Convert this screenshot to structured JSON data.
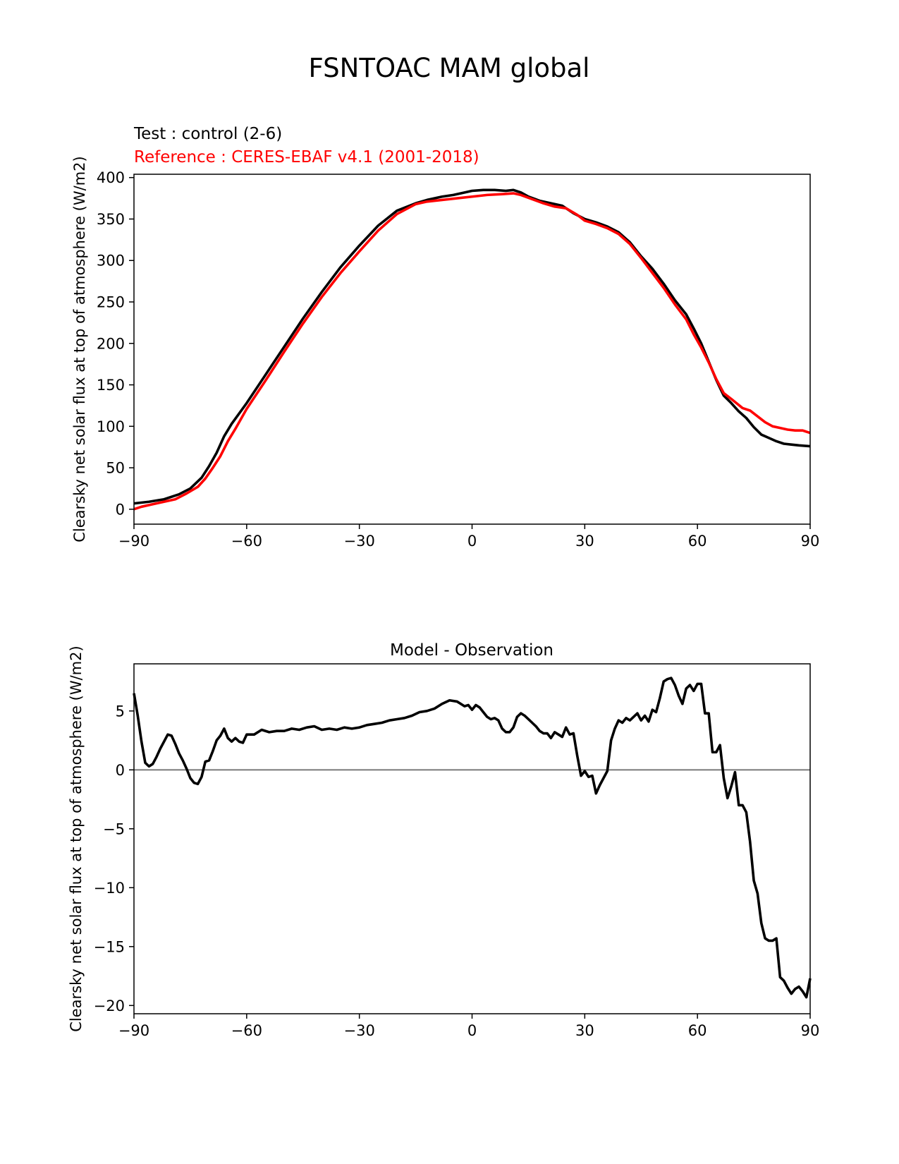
{
  "suptitle": "FSNTOAC MAM global",
  "colors": {
    "test": "#000000",
    "reference": "#ff0000",
    "zero_line": "#808080"
  },
  "chart_data": [
    {
      "type": "line",
      "title_test": "Test : control (2-6)",
      "title_reference": "Reference : CERES-EBAF v4.1 (2001-2018)",
      "xlabel": "",
      "ylabel": "Clearsky net solar flux at top of atmosphere (W/m2)",
      "xlim": [
        -90,
        90
      ],
      "ylim": [
        -18,
        404
      ],
      "xticks": [
        -90,
        -60,
        -30,
        0,
        30,
        60,
        90
      ],
      "xtick_labels": [
        "−90",
        "−60",
        "−30",
        "0",
        "30",
        "60",
        "90"
      ],
      "yticks": [
        0,
        50,
        100,
        150,
        200,
        250,
        300,
        350,
        400
      ],
      "ytick_labels": [
        "0",
        "50",
        "100",
        "150",
        "200",
        "250",
        "300",
        "350",
        "400"
      ],
      "grid": false,
      "series": [
        {
          "role": "test",
          "color": "#000000",
          "x": [
            -90,
            -86,
            -82,
            -78,
            -75,
            -72,
            -70,
            -68,
            -66,
            -64,
            -60,
            -55,
            -50,
            -45,
            -40,
            -35,
            -30,
            -25,
            -20,
            -15,
            -12,
            -8,
            -5,
            -2,
            0,
            3,
            6,
            9,
            11,
            13,
            15,
            18,
            21,
            24,
            27,
            30,
            33,
            36,
            39,
            42,
            45,
            48,
            51,
            54,
            57,
            59,
            61,
            63,
            65,
            67,
            69,
            71,
            73,
            75,
            77,
            79,
            81,
            83,
            85,
            87,
            90
          ],
          "y": [
            7,
            9,
            12,
            18,
            25,
            38,
            52,
            68,
            88,
            103,
            128,
            162,
            196,
            230,
            262,
            292,
            318,
            342,
            360,
            369,
            373,
            377,
            379,
            382,
            384,
            385,
            385,
            384,
            385,
            382,
            377,
            372,
            369,
            366,
            357,
            350,
            346,
            341,
            334,
            322,
            305,
            290,
            272,
            252,
            235,
            218,
            200,
            178,
            156,
            137,
            128,
            118,
            110,
            99,
            90,
            86,
            82,
            79,
            78,
            77,
            76
          ]
        },
        {
          "role": "reference",
          "color": "#ff0000",
          "x": [
            -90,
            -88,
            -85,
            -82,
            -79,
            -76,
            -73,
            -71,
            -69,
            -67,
            -65,
            -63,
            -60,
            -55,
            -50,
            -45,
            -40,
            -35,
            -30,
            -25,
            -20,
            -15,
            -12,
            -8,
            -4,
            0,
            4,
            8,
            11,
            13,
            16,
            19,
            22,
            25,
            28,
            30,
            33,
            36,
            39,
            42,
            45,
            48,
            51,
            54,
            57,
            59,
            61,
            63,
            65,
            67,
            69,
            72,
            74,
            76,
            78,
            80,
            82,
            84,
            86,
            88,
            90
          ],
          "y": [
            0,
            3,
            6,
            9,
            12,
            19,
            27,
            37,
            50,
            64,
            82,
            97,
            121,
            155,
            190,
            224,
            256,
            285,
            311,
            336,
            356,
            368,
            371,
            373,
            375,
            377,
            379,
            380,
            381,
            379,
            374,
            369,
            365,
            363,
            355,
            348,
            344,
            339,
            332,
            320,
            303,
            285,
            267,
            247,
            229,
            211,
            195,
            177,
            157,
            140,
            133,
            122,
            119,
            112,
            105,
            100,
            98,
            96,
            95,
            95,
            92
          ]
        }
      ]
    },
    {
      "type": "line",
      "title": "Model - Observation",
      "xlabel": "",
      "ylabel": "Clearsky net solar flux at top of atmosphere (W/m2)",
      "xlim": [
        -90,
        90
      ],
      "ylim": [
        -20.7,
        9.0
      ],
      "xticks": [
        -90,
        -60,
        -30,
        0,
        30,
        60,
        90
      ],
      "xtick_labels": [
        "−90",
        "−60",
        "−30",
        "0",
        "30",
        "60",
        "90"
      ],
      "yticks": [
        -20,
        -15,
        -10,
        -5,
        0,
        5
      ],
      "ytick_labels": [
        "−20",
        "−15",
        "−10",
        "−5",
        "0",
        "5"
      ],
      "zero_line": 0,
      "grid": false,
      "series": [
        {
          "role": "difference",
          "color": "#000000",
          "x": [
            -90,
            -89,
            -88,
            -87,
            -86,
            -85,
            -84,
            -83,
            -82,
            -81,
            -80,
            -79,
            -78,
            -77,
            -76,
            -75,
            -74,
            -73,
            -72,
            -71,
            -70,
            -69,
            -68,
            -67,
            -66,
            -65,
            -64,
            -63,
            -62,
            -61,
            -60,
            -58,
            -56,
            -54,
            -52,
            -50,
            -48,
            -46,
            -44,
            -42,
            -40,
            -38,
            -36,
            -34,
            -32,
            -30,
            -28,
            -26,
            -24,
            -22,
            -20,
            -18,
            -16,
            -14,
            -12,
            -10,
            -8,
            -6,
            -4,
            -3,
            -2,
            -1,
            0,
            1,
            2,
            3,
            4,
            5,
            6,
            7,
            8,
            9,
            10,
            11,
            12,
            13,
            14,
            15,
            16,
            17,
            18,
            19,
            20,
            21,
            22,
            23,
            24,
            25,
            26,
            27,
            28,
            29,
            30,
            31,
            32,
            33,
            34,
            35,
            36,
            37,
            38,
            39,
            40,
            41,
            42,
            43,
            44,
            45,
            46,
            47,
            48,
            49,
            50,
            51,
            52,
            53,
            54,
            55,
            56,
            57,
            58,
            59,
            60,
            61,
            62,
            63,
            64,
            65,
            66,
            67,
            68,
            69,
            70,
            71,
            72,
            73,
            74,
            75,
            76,
            77,
            78,
            79,
            80,
            81,
            82,
            83,
            84,
            85,
            86,
            87,
            88,
            89,
            90
          ],
          "y": [
            6.5,
            4.6,
            2.4,
            0.6,
            0.3,
            0.5,
            1.1,
            1.8,
            2.4,
            3.0,
            2.9,
            2.2,
            1.4,
            0.8,
            0.1,
            -0.7,
            -1.1,
            -1.2,
            -0.6,
            0.7,
            0.8,
            1.6,
            2.5,
            2.9,
            3.5,
            2.7,
            2.4,
            2.7,
            2.4,
            2.3,
            3.0,
            3.0,
            3.4,
            3.2,
            3.3,
            3.3,
            3.5,
            3.4,
            3.6,
            3.7,
            3.4,
            3.5,
            3.4,
            3.6,
            3.5,
            3.6,
            3.8,
            3.9,
            4.0,
            4.2,
            4.3,
            4.4,
            4.6,
            4.9,
            5.0,
            5.2,
            5.6,
            5.9,
            5.8,
            5.6,
            5.4,
            5.5,
            5.1,
            5.5,
            5.3,
            4.9,
            4.5,
            4.3,
            4.4,
            4.2,
            3.5,
            3.2,
            3.2,
            3.6,
            4.5,
            4.8,
            4.6,
            4.3,
            4.0,
            3.7,
            3.3,
            3.1,
            3.1,
            2.7,
            3.2,
            3.0,
            2.8,
            3.6,
            3.0,
            3.1,
            1.2,
            -0.5,
            -0.1,
            -0.6,
            -0.5,
            -2.0,
            -1.3,
            -0.7,
            -0.1,
            2.5,
            3.5,
            4.2,
            4.0,
            4.4,
            4.2,
            4.5,
            4.8,
            4.2,
            4.6,
            4.1,
            5.1,
            4.9,
            6.1,
            7.5,
            7.7,
            7.8,
            7.2,
            6.3,
            5.6,
            6.9,
            7.2,
            6.7,
            7.3,
            7.3,
            4.8,
            4.8,
            1.5,
            1.5,
            2.1,
            -0.7,
            -2.4,
            -1.4,
            -0.2,
            -3.0,
            -3.0,
            -3.6,
            -6.1,
            -9.4,
            -10.5,
            -13.0,
            -14.3,
            -14.5,
            -14.5,
            -14.3,
            -17.6,
            -17.9,
            -18.5,
            -19.0,
            -18.6,
            -18.4,
            -18.8,
            -19.3,
            -17.7
          ]
        }
      ]
    }
  ]
}
